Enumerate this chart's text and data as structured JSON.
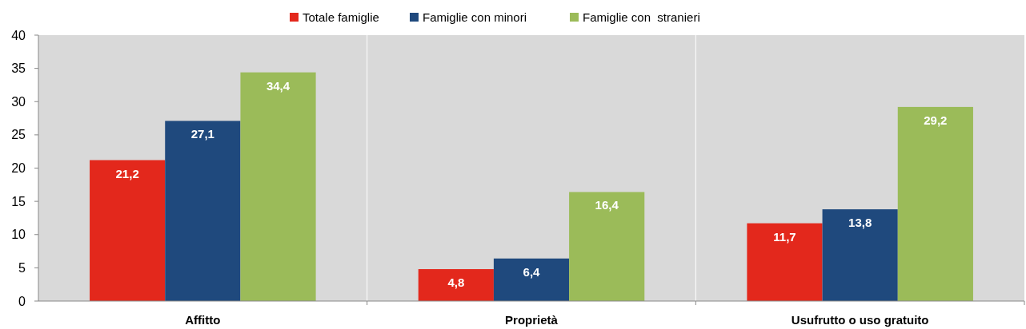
{
  "chart_data": {
    "type": "bar",
    "categories": [
      "Affitto",
      "Proprietà",
      "Usufrutto o uso gratuito"
    ],
    "series": [
      {
        "name": "Totale famiglie",
        "color": "#e3281c",
        "values": [
          21.2,
          4.8,
          11.7
        ],
        "value_labels": [
          "21,2",
          "4,8",
          "11,7"
        ]
      },
      {
        "name": "Famiglie con minori",
        "color": "#1f497d",
        "values": [
          27.1,
          6.4,
          13.8
        ],
        "value_labels": [
          "27,1",
          "6,4",
          "13,8"
        ]
      },
      {
        "name": "Famiglie con  stranieri",
        "color": "#9bbb59",
        "values": [
          34.4,
          16.4,
          29.2
        ],
        "value_labels": [
          "34,4",
          "16,4",
          "29,2"
        ]
      }
    ],
    "ylim": [
      0,
      40
    ],
    "yticks": [
      0,
      5,
      10,
      15,
      20,
      25,
      30,
      35,
      40
    ],
    "grid": "x",
    "legend": "top"
  }
}
